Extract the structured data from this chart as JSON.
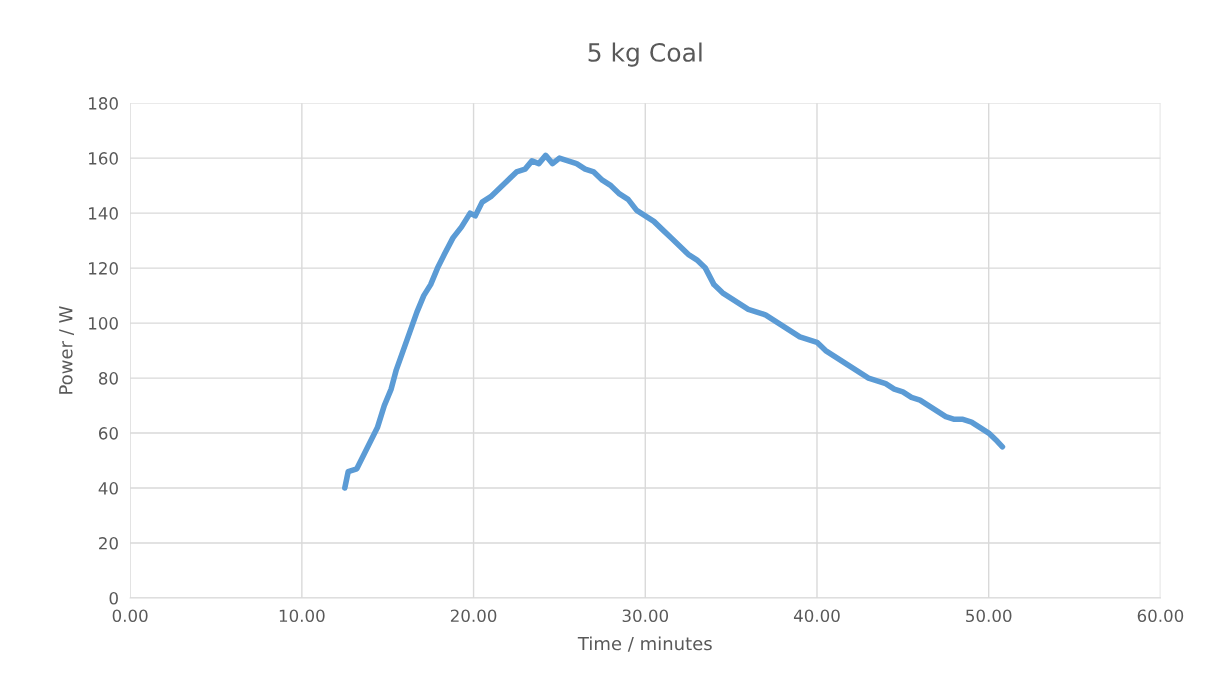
{
  "chart_data": {
    "type": "line",
    "title": "5 kg Coal",
    "xlabel": "Time / minutes",
    "ylabel": "Power / W",
    "xlim": [
      0,
      60
    ],
    "xticks": [
      {
        "value": 0,
        "label": "0.00"
      },
      {
        "value": 10,
        "label": "10.00"
      },
      {
        "value": 20,
        "label": "20.00"
      },
      {
        "value": 30,
        "label": "30.00"
      },
      {
        "value": 40,
        "label": "40.00"
      },
      {
        "value": 50,
        "label": "50.00"
      },
      {
        "value": 60,
        "label": "60.00"
      }
    ],
    "ylim": [
      0,
      180
    ],
    "yticks": [
      0,
      20,
      40,
      60,
      80,
      100,
      120,
      140,
      160,
      180
    ],
    "grid": true,
    "legend": false,
    "marker": "none",
    "line_style": "solid",
    "x": [
      12.5,
      12.7,
      13.2,
      13.6,
      14.0,
      14.4,
      14.8,
      15.2,
      15.5,
      15.9,
      16.3,
      16.7,
      17.1,
      17.5,
      17.9,
      18.3,
      18.8,
      19.3,
      19.8,
      20.1,
      20.5,
      21.0,
      21.5,
      22.0,
      22.5,
      23.0,
      23.4,
      23.8,
      24.2,
      24.6,
      25.0,
      25.5,
      26.0,
      26.5,
      27.0,
      27.5,
      28.0,
      28.5,
      29.0,
      29.5,
      30.0,
      30.5,
      31.0,
      31.5,
      32.0,
      32.5,
      33.0,
      33.5,
      34.0,
      34.5,
      35.0,
      35.5,
      36.0,
      36.5,
      37.0,
      37.5,
      38.0,
      38.5,
      39.0,
      39.5,
      40.0,
      40.5,
      41.0,
      41.5,
      42.0,
      42.5,
      43.0,
      43.5,
      44.0,
      44.5,
      45.0,
      45.5,
      46.0,
      46.5,
      47.0,
      47.5,
      48.0,
      48.5,
      49.0,
      49.5,
      50.0,
      50.5,
      50.8
    ],
    "series": [
      {
        "color": "#5b9bd5",
        "values": [
          40,
          46,
          47,
          52,
          57,
          62,
          70,
          76,
          83,
          90,
          97,
          104,
          110,
          114,
          120,
          125,
          131,
          135,
          140,
          139,
          144,
          146,
          149,
          152,
          155,
          156,
          159,
          158,
          161,
          158,
          160,
          159,
          158,
          156,
          155,
          152,
          150,
          147,
          145,
          141,
          139,
          137,
          134,
          131,
          128,
          125,
          123,
          120,
          114,
          111,
          109,
          107,
          105,
          104,
          103,
          101,
          99,
          97,
          95,
          94,
          93,
          90,
          88,
          86,
          84,
          82,
          80,
          79,
          78,
          76,
          75,
          73,
          72,
          70,
          68,
          66,
          65,
          65,
          64,
          62,
          60,
          57,
          55
        ]
      }
    ]
  }
}
